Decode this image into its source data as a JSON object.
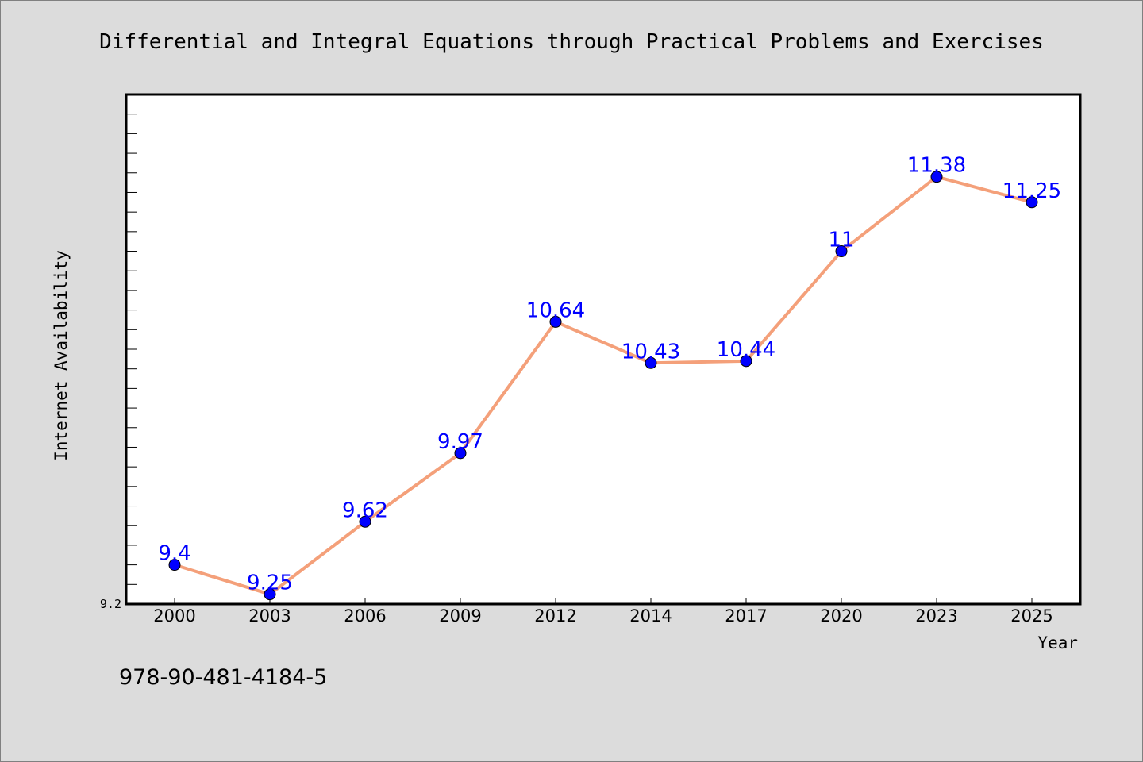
{
  "chart_data": {
    "type": "line",
    "title": "Differential and Integral Equations through Practical Problems and Exercises",
    "xlabel": "Year",
    "ylabel": "Internet Availability",
    "categories": [
      "2000",
      "2003",
      "2006",
      "2009",
      "2012",
      "2014",
      "2017",
      "2020",
      "2023",
      "2025"
    ],
    "values": [
      9.4,
      9.25,
      9.62,
      9.97,
      10.64,
      10.43,
      10.44,
      11,
      11.38,
      11.25
    ],
    "data_labels": [
      "9.4",
      "9.25",
      "9.62",
      "9.97",
      "10.64",
      "10.43",
      "10.44",
      "11",
      "11.38",
      "11.25"
    ],
    "ytick_labels": [
      "9.2"
    ],
    "ylim": [
      9.2,
      11.8
    ],
    "grid": false,
    "line_color": "#f4a07a",
    "marker_color": "#0000ff",
    "label_color": "#0000ff"
  },
  "footer": {
    "isbn": "978-90-481-4184-5"
  }
}
